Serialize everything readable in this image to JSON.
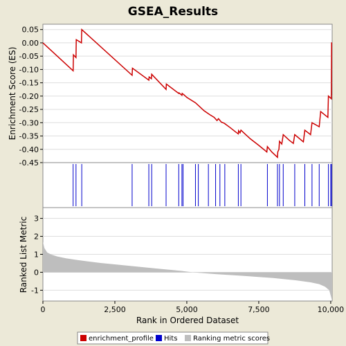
{
  "chart_data": {
    "type": "line",
    "title": "GSEA_Results",
    "xlabel": "Rank in Ordered Dataset",
    "es_panel": {
      "ylabel": "Enrichment Score (ES)",
      "ylim": [
        -0.45,
        0.07
      ],
      "yticks": [
        "0.05",
        "0.00",
        "-0.05",
        "-0.10",
        "-0.15",
        "-0.20",
        "-0.25",
        "-0.30",
        "-0.35",
        "-0.40",
        "-0.45"
      ],
      "ytick_values": [
        0.05,
        0.0,
        -0.05,
        -0.1,
        -0.15,
        -0.2,
        -0.25,
        -0.3,
        -0.35,
        -0.4,
        -0.45
      ],
      "color": "#CC0000",
      "series_name": "enrichment_profile",
      "x": [
        0,
        1050,
        1060,
        1150,
        1160,
        1340,
        1350,
        3100,
        3110,
        3680,
        3690,
        3770,
        3780,
        4280,
        4290,
        4720,
        4730,
        4830,
        4840,
        4900,
        5000,
        5300,
        5400,
        5600,
        5800,
        5950,
        6050,
        6100,
        6200,
        6300,
        6500,
        6700,
        6790,
        6800,
        6850,
        6880,
        6900,
        7000,
        7200,
        7500,
        7780,
        7800,
        7950,
        8150,
        8160,
        8200,
        8220,
        8300,
        8350,
        8550,
        8700,
        8750,
        9050,
        9100,
        9300,
        9350,
        9600,
        9650,
        9900,
        9920,
        10020,
        10030
      ],
      "y": [
        0.0,
        -0.105,
        -0.045,
        -0.055,
        0.012,
        0.0,
        0.05,
        -0.122,
        -0.095,
        -0.14,
        -0.128,
        -0.135,
        -0.118,
        -0.175,
        -0.155,
        -0.19,
        -0.188,
        -0.197,
        -0.19,
        -0.195,
        -0.205,
        -0.225,
        -0.235,
        -0.255,
        -0.27,
        -0.28,
        -0.292,
        -0.285,
        -0.298,
        -0.302,
        -0.318,
        -0.335,
        -0.342,
        -0.33,
        -0.338,
        -0.328,
        -0.33,
        -0.34,
        -0.36,
        -0.385,
        -0.41,
        -0.39,
        -0.41,
        -0.43,
        -0.41,
        -0.4,
        -0.37,
        -0.38,
        -0.345,
        -0.365,
        -0.378,
        -0.345,
        -0.372,
        -0.328,
        -0.345,
        -0.3,
        -0.315,
        -0.258,
        -0.28,
        -0.2,
        -0.21,
        0.002
      ]
    },
    "hits": {
      "series_name": "Hits",
      "color": "#0000CC",
      "positions": [
        1050,
        1150,
        1350,
        3100,
        3680,
        3780,
        4280,
        4720,
        4830,
        4870,
        5300,
        5400,
        5750,
        6000,
        6150,
        6320,
        6790,
        6880,
        7800,
        8150,
        8220,
        8350,
        8750,
        9100,
        9350,
        9600,
        9920,
        10000,
        10030
      ]
    },
    "rank_panel": {
      "ylabel": "Ranked List Metric",
      "ylim": [
        -1.6,
        3.6
      ],
      "yticks": [
        "3",
        "2",
        "1",
        "0",
        "-1"
      ],
      "ytick_values": [
        3,
        2,
        1,
        0,
        -1
      ],
      "color": "#BEBEBE",
      "series_name": "Ranking metric scores",
      "x": [
        0,
        50,
        150,
        300,
        500,
        800,
        1200,
        2000,
        3000,
        4000,
        4800,
        5200,
        6000,
        7000,
        8000,
        8800,
        9300,
        9600,
        9800,
        9950,
        10000,
        10050
      ],
      "y": [
        1.7,
        1.35,
        1.1,
        0.98,
        0.88,
        0.78,
        0.68,
        0.52,
        0.36,
        0.2,
        0.08,
        0.0,
        -0.1,
        -0.2,
        -0.32,
        -0.45,
        -0.56,
        -0.66,
        -0.8,
        -1.0,
        -1.3,
        -1.6
      ]
    },
    "xlim": [
      0,
      10050
    ],
    "xticks": [
      "0",
      "2,500",
      "5,000",
      "7,500",
      "10,000"
    ],
    "xtick_values": [
      0,
      2500,
      5000,
      7500,
      10000
    ],
    "legend_placement": "bottom",
    "legend": [
      "enrichment_profile",
      "Hits",
      "Ranking metric scores"
    ]
  }
}
